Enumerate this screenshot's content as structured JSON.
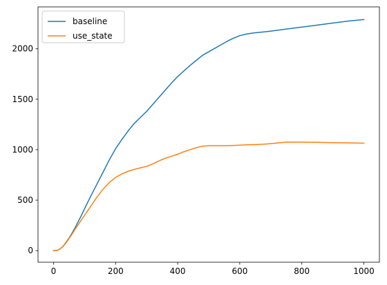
{
  "chart_data": {
    "type": "line",
    "title": "",
    "xlabel": "",
    "ylabel": "",
    "xlim": [
      -50,
      1050
    ],
    "ylim": [
      -115,
      2415
    ],
    "xticks": [
      0,
      200,
      400,
      600,
      800,
      1000
    ],
    "yticks": [
      0,
      500,
      1000,
      1500,
      2000
    ],
    "grid": false,
    "legend_position": "top-left",
    "series": [
      {
        "name": "baseline",
        "color": "#1f77b4",
        "x": [
          0,
          10,
          20,
          30,
          40,
          50,
          60,
          70,
          80,
          90,
          100,
          120,
          140,
          160,
          180,
          200,
          220,
          240,
          260,
          280,
          300,
          320,
          340,
          360,
          380,
          400,
          420,
          440,
          460,
          480,
          500,
          520,
          540,
          560,
          580,
          600,
          620,
          640,
          660,
          680,
          700,
          750,
          800,
          850,
          900,
          950,
          1000
        ],
        "y": [
          0,
          0,
          15,
          40,
          80,
          125,
          175,
          230,
          290,
          350,
          415,
          540,
          660,
          780,
          900,
          1010,
          1100,
          1185,
          1260,
          1320,
          1380,
          1450,
          1520,
          1590,
          1660,
          1725,
          1780,
          1835,
          1885,
          1935,
          1970,
          2005,
          2040,
          2075,
          2105,
          2130,
          2145,
          2155,
          2162,
          2168,
          2175,
          2195,
          2215,
          2235,
          2255,
          2275,
          2290
        ]
      },
      {
        "name": "use_state",
        "color": "#ff7f0e",
        "x": [
          0,
          10,
          20,
          30,
          40,
          50,
          60,
          70,
          80,
          90,
          100,
          120,
          140,
          160,
          180,
          200,
          220,
          240,
          260,
          280,
          300,
          320,
          340,
          360,
          380,
          400,
          420,
          440,
          460,
          480,
          500,
          520,
          540,
          560,
          580,
          600,
          620,
          640,
          660,
          680,
          700,
          750,
          800,
          850,
          900,
          950,
          1000
        ],
        "y": [
          0,
          0,
          15,
          40,
          75,
          120,
          165,
          215,
          260,
          305,
          350,
          440,
          530,
          610,
          675,
          725,
          760,
          785,
          805,
          820,
          835,
          860,
          890,
          915,
          935,
          955,
          980,
          1000,
          1020,
          1035,
          1040,
          1040,
          1040,
          1040,
          1042,
          1045,
          1048,
          1050,
          1052,
          1055,
          1060,
          1075,
          1075,
          1073,
          1070,
          1068,
          1065
        ]
      }
    ]
  }
}
